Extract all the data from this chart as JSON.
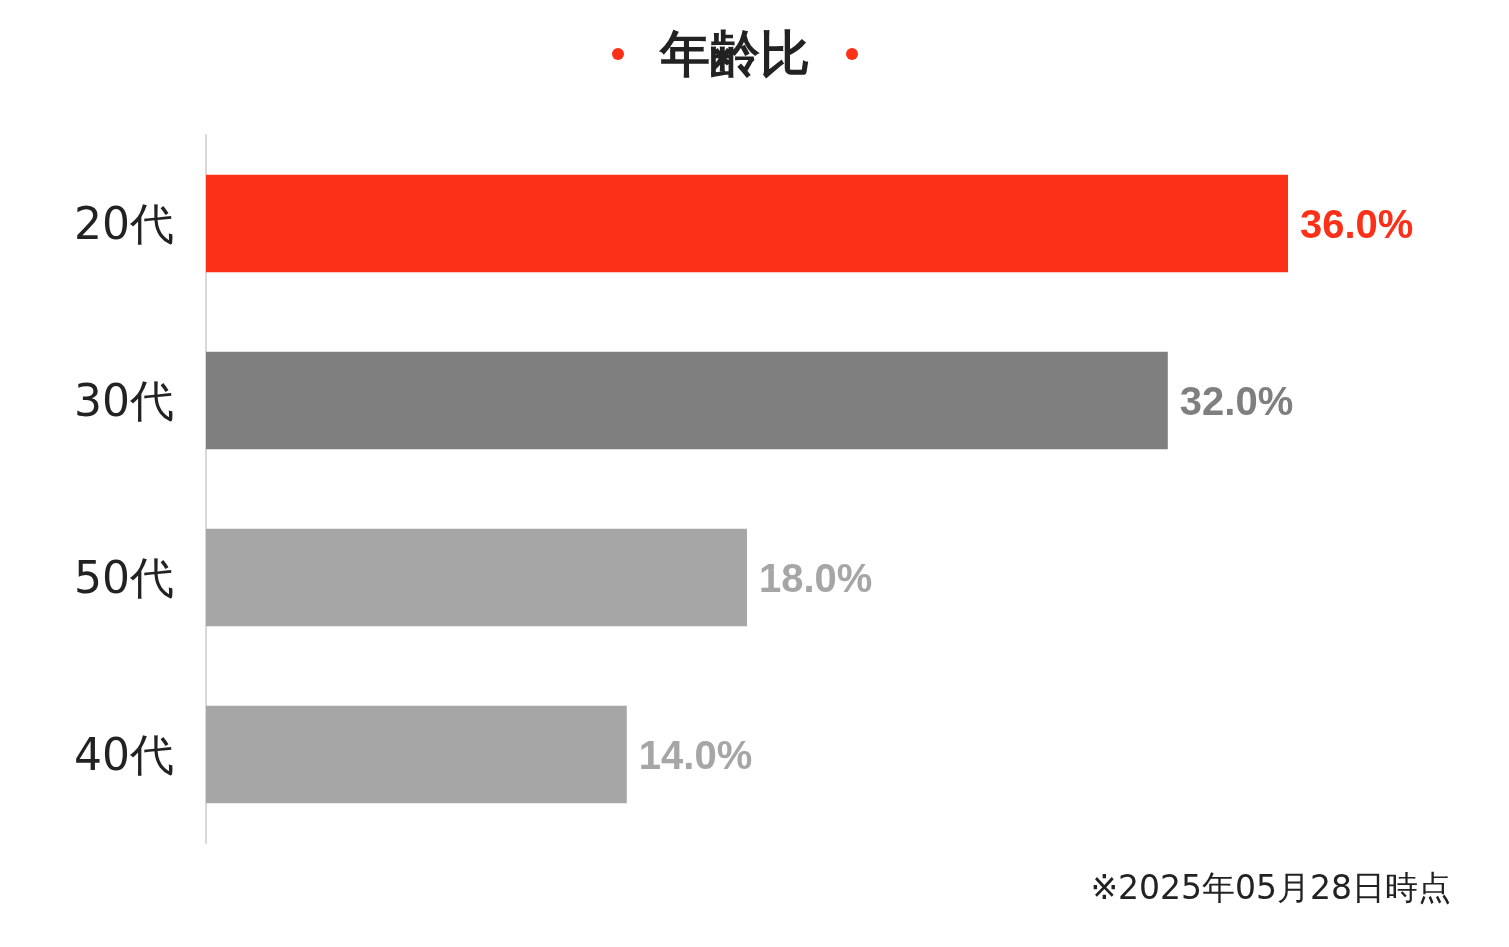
{
  "chart_data": {
    "type": "bar",
    "title": "年齢比",
    "orientation": "horizontal",
    "categories": [
      "20代",
      "30代",
      "50代",
      "40代"
    ],
    "values": [
      36,
      32,
      18,
      14
    ],
    "colors": [
      "#fc3018",
      "#7f7f7f",
      "#a6a6a6",
      "#a6a6a6"
    ],
    "value_labels": [
      "36.0%",
      "32.0%",
      "18.0%",
      "14.0%"
    ],
    "tick_labels": "y",
    "annotations": [
      "※2025年05月28日時点"
    ]
  }
}
